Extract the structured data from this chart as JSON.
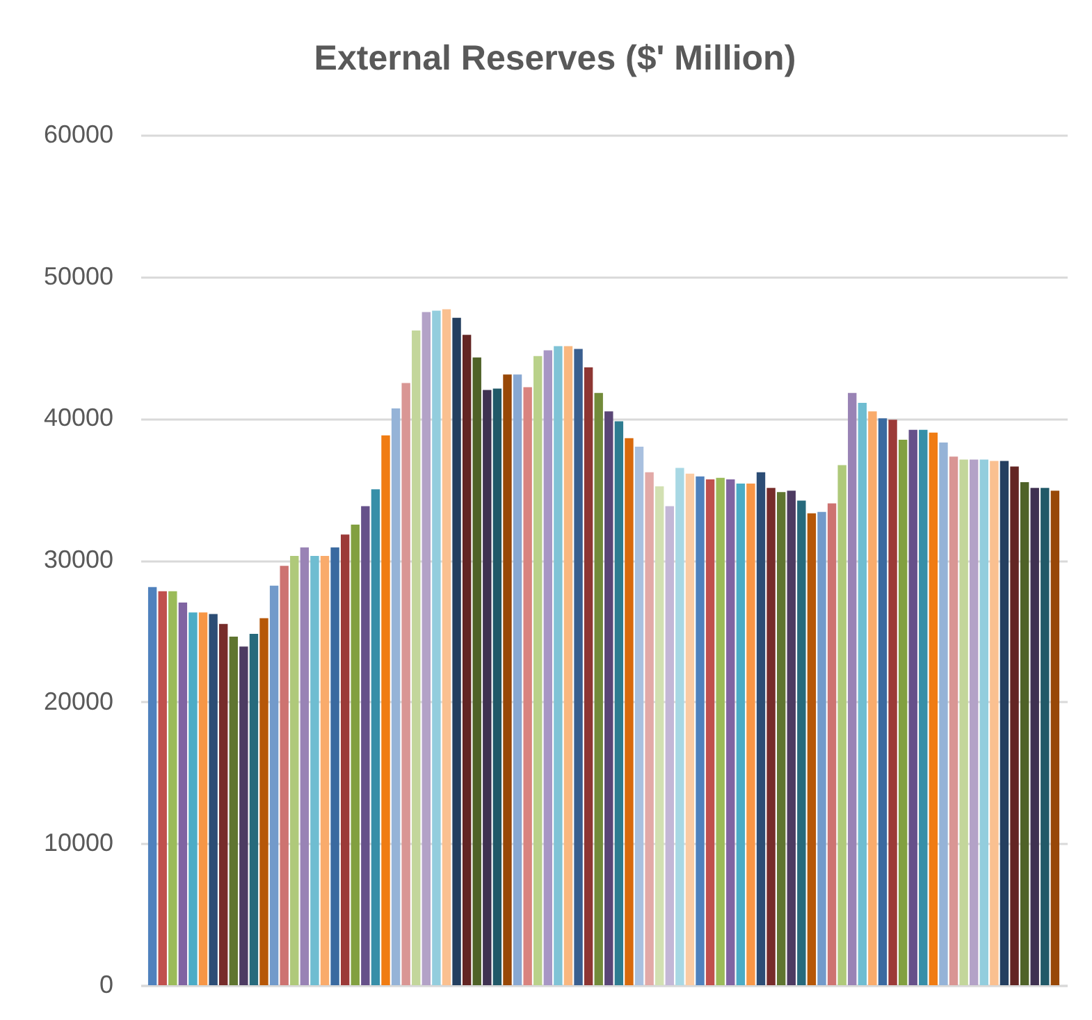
{
  "chart_data": {
    "type": "bar",
    "title": "External Reserves ($' Million)",
    "categories": [
      null,
      null,
      null,
      null,
      null,
      null,
      null,
      null,
      null,
      null,
      null,
      null,
      null,
      null,
      null,
      null,
      null,
      null,
      null,
      null,
      null,
      null,
      null,
      null,
      null,
      null,
      null,
      null,
      null,
      null,
      null,
      null,
      null,
      null,
      null,
      null,
      null,
      null,
      null,
      null,
      null,
      null,
      null,
      null,
      null,
      null,
      null,
      null,
      null,
      null,
      null,
      null,
      null,
      null,
      null,
      null,
      null,
      null,
      null,
      null,
      null,
      null,
      null,
      null,
      null,
      null,
      null,
      null,
      null,
      null,
      null,
      null,
      null,
      null,
      null,
      null,
      null,
      null,
      null,
      null,
      null,
      null,
      null,
      null,
      null,
      null,
      null,
      null,
      null,
      null
    ],
    "values": [
      28100,
      27800,
      27800,
      27000,
      26300,
      26300,
      26200,
      25500,
      24600,
      23900,
      24800,
      25900,
      28200,
      29600,
      30300,
      30900,
      30300,
      30300,
      30900,
      31800,
      32500,
      33800,
      35000,
      38800,
      40700,
      42500,
      46200,
      47500,
      47600,
      47700,
      47100,
      45900,
      44300,
      42000,
      42100,
      43100,
      43100,
      42200,
      44400,
      44800,
      45100,
      45100,
      44900,
      43600,
      41800,
      40500,
      39800,
      38600,
      38000,
      36200,
      35200,
      33800,
      36500,
      36100,
      35900,
      35700,
      35800,
      35700,
      35400,
      35400,
      36200,
      35100,
      34800,
      34900,
      34200,
      33300,
      33400,
      34000,
      36700,
      41800,
      41100,
      40500,
      40000,
      39900,
      38500,
      39200,
      39200,
      39000,
      38300,
      37300,
      37100,
      37100,
      37100,
      37000,
      37000,
      36600,
      35500,
      35100,
      35100,
      34900
    ],
    "colors": [
      "#4f81bd",
      "#c0504d",
      "#9bbb59",
      "#8064a2",
      "#4bacc6",
      "#f79646",
      "#2c4d75",
      "#772c2a",
      "#5f7530",
      "#4d3b62",
      "#276a7c",
      "#b65708",
      "#729aca",
      "#cd7371",
      "#afc97a",
      "#9983b5",
      "#6fbdd1",
      "#f9ab6b",
      "#3a6aa0",
      "#9c3a38",
      "#82a040",
      "#66518a",
      "#378fa8",
      "#f07c13",
      "#95b3d7",
      "#d99694",
      "#c3d69b",
      "#b3a2c7",
      "#93cddd",
      "#fac090",
      "#243f60",
      "#632523",
      "#4f6228",
      "#3f3151",
      "#215968",
      "#984807",
      "#88a8d2",
      "#d9837f",
      "#b9d18a",
      "#a796c4",
      "#7fc3d6",
      "#f9b77f",
      "#3a5f8f",
      "#8e3633",
      "#728b3a",
      "#5a4676",
      "#2e7c91",
      "#d86a0d",
      "#a9c0df",
      "#e2a9a7",
      "#d2e0b2",
      "#c3b7d6",
      "#a8d8e4",
      "#fbcba3",
      "#4f81bd",
      "#c0504d",
      "#9bbb59",
      "#8064a2",
      "#4bacc6",
      "#f79646",
      "#2c4d75",
      "#772c2a",
      "#5f7530",
      "#4d3b62",
      "#276a7c",
      "#b65708",
      "#729aca",
      "#cd7371",
      "#afc97a",
      "#9983b5",
      "#6fbdd1",
      "#f9ab6b",
      "#3a6aa0",
      "#9c3a38",
      "#82a040",
      "#66518a",
      "#378fa8",
      "#f07c13",
      "#95b3d7",
      "#d99694",
      "#c3d69b",
      "#b3a2c7",
      "#93cddd",
      "#fac090",
      "#243f60",
      "#632523",
      "#4f6228",
      "#3f3151",
      "#215968",
      "#984807"
    ],
    "ylim": [
      0,
      60000
    ],
    "yticks": [
      0,
      10000,
      20000,
      30000,
      40000,
      50000,
      60000
    ],
    "grid": "y",
    "tick_labels": "y"
  }
}
